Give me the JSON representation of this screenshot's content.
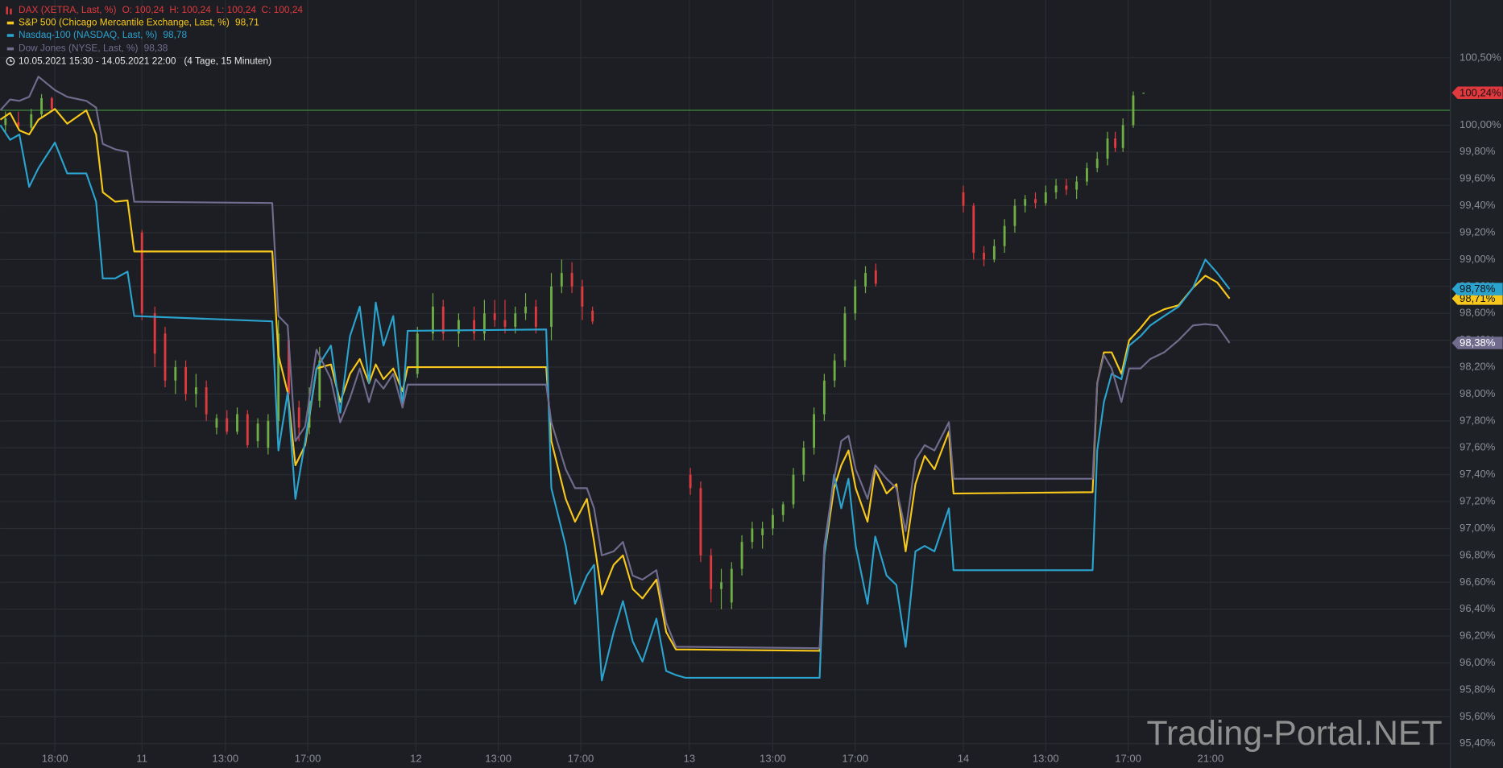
{
  "chart_data": {
    "type": "line",
    "period": "10.05.2021 15:30 - 14.05.2021 22:00   (4 Tage, 15 Minuten)",
    "watermark": "Trading-Portal.NET",
    "grid": true,
    "xlim": [
      0,
      281.5
    ],
    "xticks": [
      {
        "value": 10.6,
        "label": "18:00"
      },
      {
        "value": 27.5,
        "label": "11"
      },
      {
        "value": 43.7,
        "label": "13:00"
      },
      {
        "value": 59.7,
        "label": "17:00"
      },
      {
        "value": 80.7,
        "label": "12"
      },
      {
        "value": 96.7,
        "label": "13:00"
      },
      {
        "value": 112.7,
        "label": "17:00"
      },
      {
        "value": 133.8,
        "label": "13"
      },
      {
        "value": 150,
        "label": "13:00"
      },
      {
        "value": 166,
        "label": "17:00"
      },
      {
        "value": 187,
        "label": "14"
      },
      {
        "value": 203,
        "label": "13:00"
      },
      {
        "value": 219,
        "label": "17:00"
      },
      {
        "value": 235,
        "label": "21:00"
      }
    ],
    "ylim": [
      95.34,
      100.93
    ],
    "yticks": [
      {
        "value": 95.4,
        "label": "95,40%"
      },
      {
        "value": 95.6,
        "label": "95,60%"
      },
      {
        "value": 95.8,
        "label": "95,80%"
      },
      {
        "value": 96.0,
        "label": "96,00%"
      },
      {
        "value": 96.2,
        "label": "96,20%"
      },
      {
        "value": 96.4,
        "label": "96,40%"
      },
      {
        "value": 96.6,
        "label": "96,60%"
      },
      {
        "value": 96.8,
        "label": "96,80%"
      },
      {
        "value": 97.0,
        "label": "97,00%"
      },
      {
        "value": 97.2,
        "label": "97,20%"
      },
      {
        "value": 97.4,
        "label": "97,40%"
      },
      {
        "value": 97.6,
        "label": "97,60%"
      },
      {
        "value": 97.8,
        "label": "97,80%"
      },
      {
        "value": 98.0,
        "label": "98,00%"
      },
      {
        "value": 98.2,
        "label": "98,20%"
      },
      {
        "value": 98.4,
        "label": "98,40%"
      },
      {
        "value": 98.6,
        "label": "98,60%"
      },
      {
        "value": 98.8,
        "label": "98,80%"
      },
      {
        "value": 99.0,
        "label": "99,00%"
      },
      {
        "value": 99.2,
        "label": "99,20%"
      },
      {
        "value": 99.4,
        "label": "99,40%"
      },
      {
        "value": 99.6,
        "label": "99,60%"
      },
      {
        "value": 99.8,
        "label": "99,80%"
      },
      {
        "value": 100.0,
        "label": "100,00%"
      },
      {
        "value": 100.5,
        "label": "100,50%"
      }
    ],
    "reference_line": {
      "value": 100.11,
      "color": "#3d8a3d"
    },
    "candles": {
      "name": "DAX (XETRA, Last, %)",
      "ohlc_label": "O: 100,24  H: 100,24  L: 100,24  C: 100,24",
      "color": "#e0393e",
      "color_up": "#6fae45",
      "color_down": "#e0393e",
      "last_label": "100,24%",
      "last_value": 100.24,
      "bars": [
        {
          "x": 1,
          "open": 100.0,
          "high": 100.1,
          "low": 99.95,
          "close": 100.05
        },
        {
          "x": 3.5,
          "open": 100.02,
          "high": 100.1,
          "low": 99.97,
          "close": 99.99
        },
        {
          "x": 6,
          "open": 99.98,
          "high": 100.12,
          "low": 99.95,
          "close": 100.08
        },
        {
          "x": 8,
          "open": 100.08,
          "high": 100.23,
          "low": 100.05,
          "close": 100.2
        },
        {
          "x": 10,
          "open": 100.2,
          "high": 100.21,
          "low": 100.1,
          "close": 100.12
        },
        {
          "x": 27.5,
          "open": 99.2,
          "high": 99.22,
          "low": 98.55,
          "close": 98.6
        },
        {
          "x": 30,
          "open": 98.6,
          "high": 98.65,
          "low": 98.2,
          "close": 98.3
        },
        {
          "x": 32,
          "open": 98.45,
          "high": 98.5,
          "low": 98.05,
          "close": 98.1
        },
        {
          "x": 34,
          "open": 98.1,
          "high": 98.25,
          "low": 98.0,
          "close": 98.2
        },
        {
          "x": 36,
          "open": 98.2,
          "high": 98.25,
          "low": 97.95,
          "close": 98.0
        },
        {
          "x": 38,
          "open": 98.0,
          "high": 98.15,
          "low": 97.9,
          "close": 98.05
        },
        {
          "x": 40,
          "open": 98.05,
          "high": 98.1,
          "low": 97.8,
          "close": 97.85
        },
        {
          "x": 42,
          "open": 97.75,
          "high": 97.85,
          "low": 97.7,
          "close": 97.82
        },
        {
          "x": 44,
          "open": 97.82,
          "high": 97.88,
          "low": 97.7,
          "close": 97.72
        },
        {
          "x": 46,
          "open": 97.72,
          "high": 97.9,
          "low": 97.7,
          "close": 97.85
        },
        {
          "x": 48,
          "open": 97.85,
          "high": 97.88,
          "low": 97.6,
          "close": 97.62
        },
        {
          "x": 50,
          "open": 97.65,
          "high": 97.82,
          "low": 97.6,
          "close": 97.78
        },
        {
          "x": 52,
          "open": 97.6,
          "high": 97.85,
          "low": 97.55,
          "close": 97.8
        },
        {
          "x": 54,
          "open": 97.8,
          "high": 98.55,
          "low": 97.7,
          "close": 98.45
        },
        {
          "x": 56,
          "open": 98.4,
          "high": 98.45,
          "low": 97.9,
          "close": 98.0
        },
        {
          "x": 58,
          "open": 97.9,
          "high": 97.95,
          "low": 97.65,
          "close": 97.75
        },
        {
          "x": 60,
          "open": 97.75,
          "high": 98.05,
          "low": 97.7,
          "close": 97.95
        },
        {
          "x": 62,
          "open": 97.95,
          "high": 98.35,
          "low": 97.9,
          "close": 98.25
        },
        {
          "x": 81,
          "open": 98.15,
          "high": 98.5,
          "low": 98.12,
          "close": 98.45
        },
        {
          "x": 84,
          "open": 98.45,
          "high": 98.75,
          "low": 98.4,
          "close": 98.65
        },
        {
          "x": 86,
          "open": 98.65,
          "high": 98.7,
          "low": 98.4,
          "close": 98.45
        },
        {
          "x": 89,
          "open": 98.45,
          "high": 98.6,
          "low": 98.35,
          "close": 98.55
        },
        {
          "x": 92,
          "open": 98.55,
          "high": 98.65,
          "low": 98.4,
          "close": 98.45
        },
        {
          "x": 94,
          "open": 98.45,
          "high": 98.7,
          "low": 98.4,
          "close": 98.6
        },
        {
          "x": 96,
          "open": 98.6,
          "high": 98.7,
          "low": 98.5,
          "close": 98.55
        },
        {
          "x": 98,
          "open": 98.55,
          "high": 98.7,
          "low": 98.45,
          "close": 98.5
        },
        {
          "x": 100,
          "open": 98.5,
          "high": 98.65,
          "low": 98.45,
          "close": 98.6
        },
        {
          "x": 102,
          "open": 98.6,
          "high": 98.75,
          "low": 98.55,
          "close": 98.65
        },
        {
          "x": 104,
          "open": 98.65,
          "high": 98.7,
          "low": 98.45,
          "close": 98.5
        },
        {
          "x": 107,
          "open": 98.5,
          "high": 98.9,
          "low": 98.4,
          "close": 98.8
        },
        {
          "x": 109,
          "open": 98.8,
          "high": 99.0,
          "low": 98.75,
          "close": 98.9
        },
        {
          "x": 111,
          "open": 98.9,
          "high": 98.98,
          "low": 98.75,
          "close": 98.8
        },
        {
          "x": 113,
          "open": 98.8,
          "high": 98.85,
          "low": 98.55,
          "close": 98.65
        },
        {
          "x": 115,
          "open": 98.62,
          "high": 98.65,
          "low": 98.52,
          "close": 98.54
        },
        {
          "x": 134,
          "open": 97.4,
          "high": 97.45,
          "low": 97.25,
          "close": 97.3
        },
        {
          "x": 136,
          "open": 97.3,
          "high": 97.35,
          "low": 96.75,
          "close": 96.8
        },
        {
          "x": 138,
          "open": 96.8,
          "high": 96.85,
          "low": 96.45,
          "close": 96.55
        },
        {
          "x": 140,
          "open": 96.55,
          "high": 96.7,
          "low": 96.4,
          "close": 96.6
        },
        {
          "x": 142,
          "open": 96.45,
          "high": 96.75,
          "low": 96.4,
          "close": 96.7
        },
        {
          "x": 144,
          "open": 96.7,
          "high": 96.95,
          "low": 96.65,
          "close": 96.9
        },
        {
          "x": 146,
          "open": 96.9,
          "high": 97.05,
          "low": 96.85,
          "close": 97.0
        },
        {
          "x": 148,
          "open": 96.95,
          "high": 97.05,
          "low": 96.85,
          "close": 97.0
        },
        {
          "x": 150,
          "open": 97.0,
          "high": 97.15,
          "low": 96.95,
          "close": 97.1
        },
        {
          "x": 152,
          "open": 97.1,
          "high": 97.2,
          "low": 97.05,
          "close": 97.18
        },
        {
          "x": 154,
          "open": 97.18,
          "high": 97.45,
          "low": 97.15,
          "close": 97.4
        },
        {
          "x": 156,
          "open": 97.4,
          "high": 97.65,
          "low": 97.35,
          "close": 97.6
        },
        {
          "x": 158,
          "open": 97.6,
          "high": 97.9,
          "low": 97.55,
          "close": 97.85
        },
        {
          "x": 160,
          "open": 97.85,
          "high": 98.15,
          "low": 97.8,
          "close": 98.1
        },
        {
          "x": 162,
          "open": 98.1,
          "high": 98.3,
          "low": 98.05,
          "close": 98.25
        },
        {
          "x": 164,
          "open": 98.25,
          "high": 98.65,
          "low": 98.2,
          "close": 98.6
        },
        {
          "x": 166,
          "open": 98.6,
          "high": 98.85,
          "low": 98.55,
          "close": 98.8
        },
        {
          "x": 168,
          "open": 98.8,
          "high": 98.95,
          "low": 98.75,
          "close": 98.9
        },
        {
          "x": 170,
          "open": 98.92,
          "high": 98.97,
          "low": 98.8,
          "close": 98.82
        },
        {
          "x": 187,
          "open": 99.5,
          "high": 99.55,
          "low": 99.35,
          "close": 99.4
        },
        {
          "x": 189,
          "open": 99.4,
          "high": 99.42,
          "low": 99.0,
          "close": 99.05
        },
        {
          "x": 191,
          "open": 99.05,
          "high": 99.1,
          "low": 98.95,
          "close": 99.0
        },
        {
          "x": 193,
          "open": 99.0,
          "high": 99.15,
          "low": 98.98,
          "close": 99.1
        },
        {
          "x": 195,
          "open": 99.1,
          "high": 99.3,
          "low": 99.05,
          "close": 99.25
        },
        {
          "x": 197,
          "open": 99.25,
          "high": 99.45,
          "low": 99.2,
          "close": 99.4
        },
        {
          "x": 199,
          "open": 99.4,
          "high": 99.48,
          "low": 99.35,
          "close": 99.45
        },
        {
          "x": 201,
          "open": 99.45,
          "high": 99.5,
          "low": 99.38,
          "close": 99.42
        },
        {
          "x": 203,
          "open": 99.42,
          "high": 99.55,
          "low": 99.4,
          "close": 99.5
        },
        {
          "x": 205,
          "open": 99.5,
          "high": 99.6,
          "low": 99.45,
          "close": 99.55
        },
        {
          "x": 207,
          "open": 99.55,
          "high": 99.6,
          "low": 99.48,
          "close": 99.52
        },
        {
          "x": 209,
          "open": 99.52,
          "high": 99.62,
          "low": 99.45,
          "close": 99.58
        },
        {
          "x": 211,
          "open": 99.58,
          "high": 99.72,
          "low": 99.55,
          "close": 99.68
        },
        {
          "x": 213,
          "open": 99.68,
          "high": 99.8,
          "low": 99.65,
          "close": 99.75
        },
        {
          "x": 215,
          "open": 99.75,
          "high": 99.95,
          "low": 99.7,
          "close": 99.9
        },
        {
          "x": 216.5,
          "open": 99.9,
          "high": 99.95,
          "low": 99.8,
          "close": 99.83
        },
        {
          "x": 218,
          "open": 99.83,
          "high": 100.05,
          "low": 99.8,
          "close": 100.0
        },
        {
          "x": 220,
          "open": 100.0,
          "high": 100.25,
          "low": 99.98,
          "close": 100.22
        },
        {
          "x": 222,
          "open": 100.24,
          "high": 100.24,
          "low": 100.24,
          "close": 100.24
        }
      ]
    },
    "x": [
      0,
      1.9,
      3.7,
      5.6,
      7.4,
      10.6,
      13,
      16.7,
      18.6,
      19.9,
      22.3,
      24.7,
      26,
      52.8,
      54,
      55.8,
      57.3,
      59.2,
      61.4,
      64.2,
      66,
      67.9,
      69.8,
      71.6,
      72.9,
      74.4,
      76.3,
      78.1,
      79.1,
      106,
      107,
      109.8,
      111.6,
      113.9,
      115.3,
      116.8,
      119.1,
      120.9,
      122.8,
      124.7,
      127.4,
      129.3,
      131.2,
      133,
      159.1,
      160,
      161.9,
      163.3,
      164.7,
      166.1,
      168.4,
      169.9,
      172.1,
      174,
      175.8,
      177.7,
      179.5,
      181.4,
      184.2,
      185.1,
      212.1,
      213,
      214.3,
      215.8,
      217.7,
      219.2,
      221.4,
      223.3,
      226,
      228.8,
      231.6,
      234,
      236.3,
      238.7
    ],
    "series": [
      {
        "name": "S&P 500 (Chicago Mercantile Exchange, Last, %)",
        "legend_value": "98,71",
        "last_label": "98,71%",
        "color": "#f7c81b",
        "values": [
          100.04,
          100.09,
          99.96,
          99.93,
          100.04,
          100.12,
          100.01,
          100.11,
          99.93,
          99.5,
          99.43,
          99.44,
          99.06,
          99.06,
          98.29,
          98.01,
          97.47,
          97.62,
          98.19,
          98.22,
          97.94,
          98.15,
          98.26,
          98.08,
          98.22,
          98.11,
          98.19,
          98.02,
          98.2,
          98.2,
          97.65,
          97.22,
          97.05,
          97.22,
          96.9,
          96.51,
          96.73,
          96.8,
          96.55,
          96.48,
          96.62,
          96.23,
          96.1,
          96.1,
          96.09,
          96.8,
          97.3,
          97.47,
          97.58,
          97.3,
          97.05,
          97.44,
          97.26,
          97.33,
          96.83,
          97.33,
          97.54,
          97.44,
          97.72,
          97.26,
          97.27,
          98.08,
          98.31,
          98.31,
          98.15,
          98.4,
          98.49,
          98.58,
          98.63,
          98.66,
          98.79,
          98.88,
          98.83,
          98.71
        ]
      },
      {
        "name": "Nasdaq-100 (NASDAQ, Last, %)",
        "legend_value": "98,78",
        "last_label": "98,78%",
        "color": "#2ba3cf",
        "values": [
          100.0,
          99.89,
          99.93,
          99.54,
          99.68,
          99.87,
          99.64,
          99.64,
          99.43,
          98.86,
          98.86,
          98.91,
          98.58,
          98.54,
          97.58,
          98.01,
          97.22,
          97.65,
          98.19,
          98.36,
          97.86,
          98.43,
          98.65,
          98.08,
          98.68,
          98.36,
          98.58,
          97.9,
          98.47,
          98.48,
          97.3,
          96.87,
          96.44,
          96.65,
          96.73,
          95.87,
          96.23,
          96.46,
          96.16,
          96.01,
          96.33,
          95.94,
          95.91,
          95.89,
          95.89,
          96.8,
          97.4,
          97.15,
          97.37,
          96.87,
          96.44,
          96.94,
          96.65,
          96.58,
          96.12,
          96.83,
          96.87,
          96.83,
          97.15,
          96.69,
          96.69,
          97.58,
          97.94,
          98.15,
          98.11,
          98.36,
          98.43,
          98.51,
          98.58,
          98.65,
          98.79,
          99.0,
          98.9,
          98.78
        ]
      },
      {
        "name": "Dow Jones (NYSE, Last, %)",
        "legend_value": "98,38",
        "last_label": "98,38%",
        "color": "#716b8e",
        "values": [
          100.11,
          100.19,
          100.18,
          100.21,
          100.36,
          100.26,
          100.21,
          100.18,
          100.13,
          99.86,
          99.82,
          99.8,
          99.43,
          99.42,
          98.58,
          98.51,
          97.65,
          97.76,
          98.33,
          98.11,
          97.79,
          97.97,
          98.19,
          97.94,
          98.11,
          98.04,
          98.15,
          97.9,
          98.07,
          98.07,
          97.79,
          97.44,
          97.3,
          97.3,
          97.15,
          96.8,
          96.83,
          96.9,
          96.65,
          96.62,
          96.69,
          96.3,
          96.12,
          96.12,
          96.11,
          96.87,
          97.37,
          97.65,
          97.69,
          97.44,
          97.22,
          97.47,
          97.37,
          97.3,
          96.98,
          97.51,
          97.62,
          97.58,
          97.79,
          97.37,
          97.37,
          98.08,
          98.29,
          98.19,
          97.94,
          98.19,
          98.19,
          98.26,
          98.31,
          98.4,
          98.51,
          98.52,
          98.51,
          98.38
        ]
      }
    ]
  }
}
